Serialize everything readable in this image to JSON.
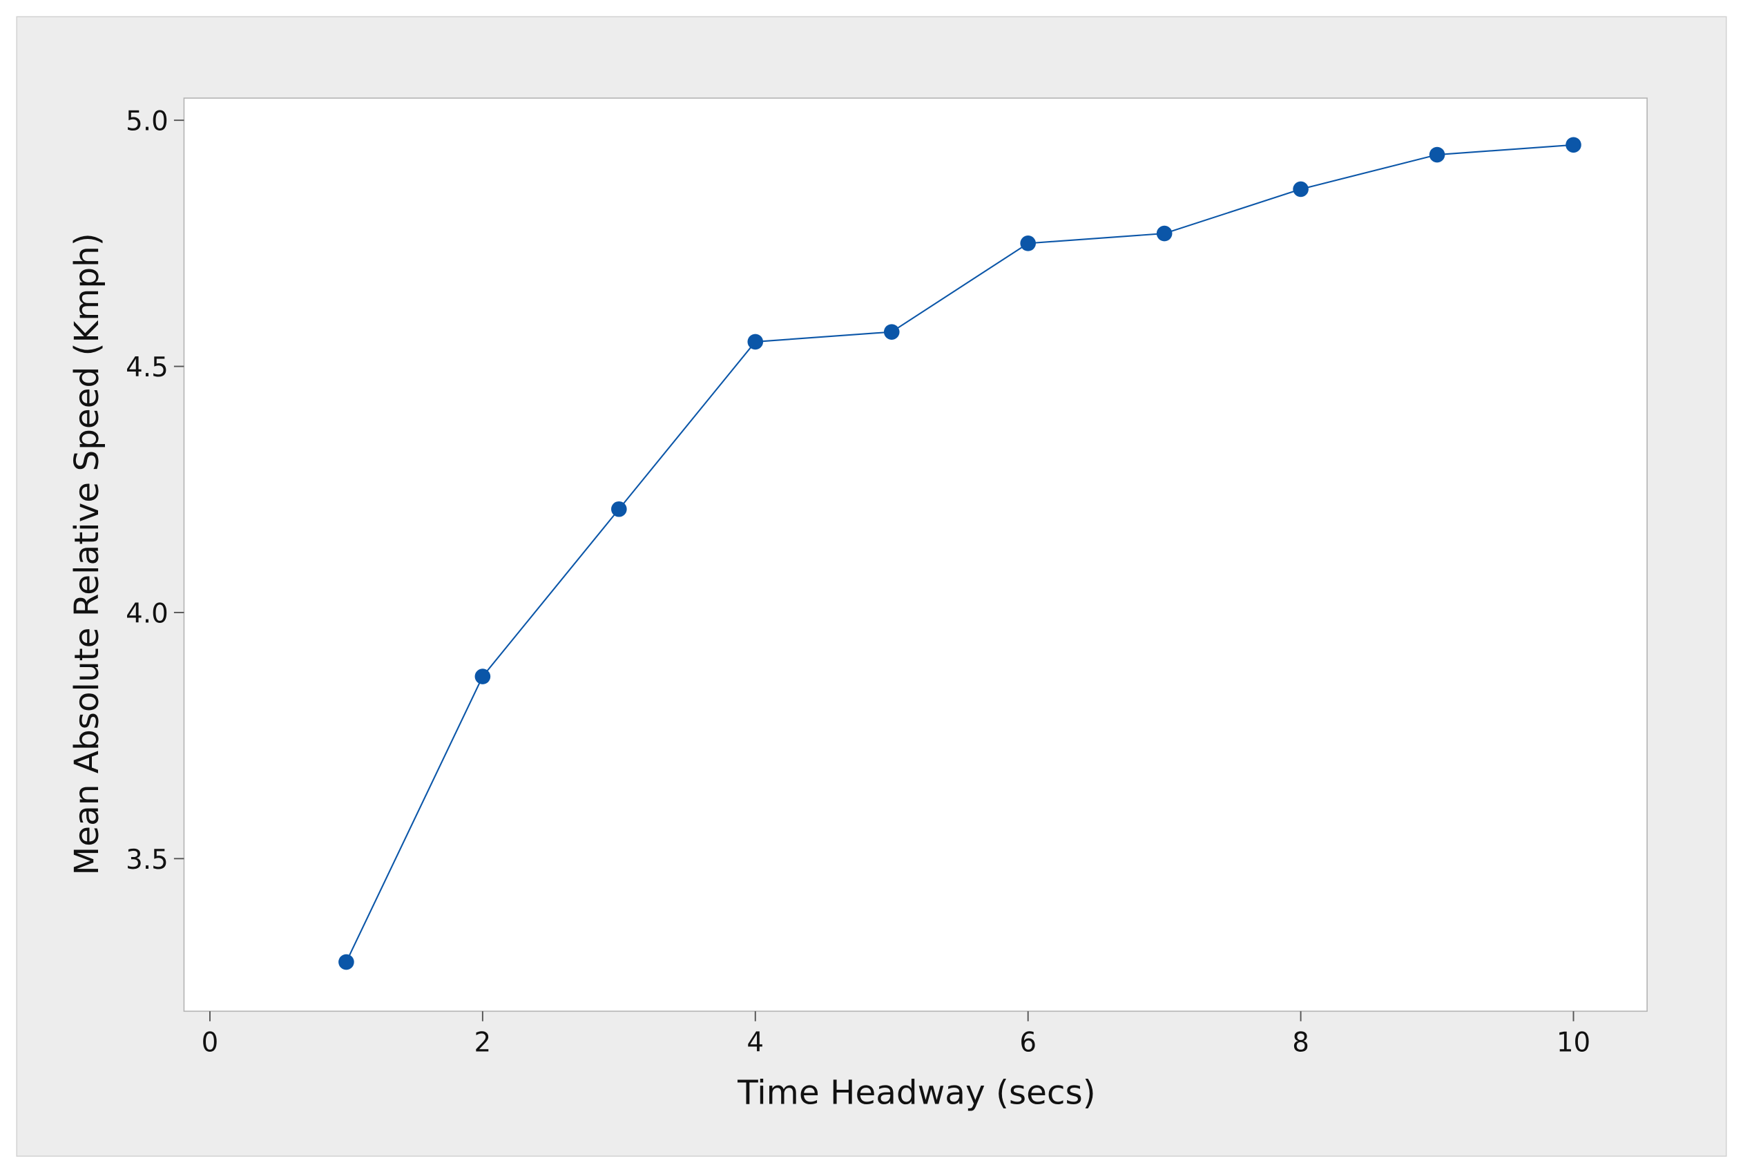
{
  "chart_data": {
    "type": "line",
    "x_label": "Time Headway (secs)",
    "y_label": "Mean Absolute Relative Speed (Kmph)",
    "x": [
      1,
      2,
      3,
      4,
      5,
      6,
      7,
      8,
      9,
      10
    ],
    "series": [
      {
        "color": "#0b56a8",
        "values": [
          3.29,
          3.87,
          4.21,
          4.55,
          4.57,
          4.75,
          4.77,
          4.86,
          4.93,
          4.95
        ]
      }
    ],
    "xlim": [
      -0.19,
      10.54
    ],
    "xticks": [
      0,
      2,
      4,
      6,
      8,
      10
    ],
    "ylim": [
      3.19,
      5.045
    ],
    "yticks": [
      {
        "value": 3.5,
        "label": "3.5"
      },
      {
        "value": 4,
        "label": "4.0"
      },
      {
        "value": 4.5,
        "label": "4.5"
      },
      {
        "value": 5,
        "label": "5.0"
      }
    ]
  }
}
